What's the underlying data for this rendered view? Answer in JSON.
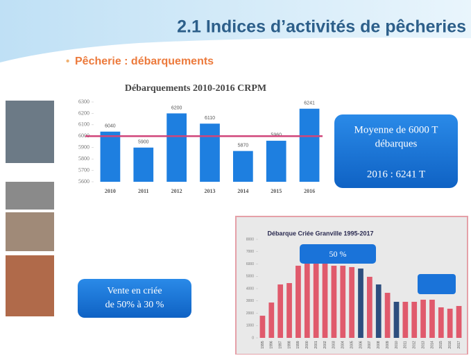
{
  "slide": {
    "title": "2.1 Indices d’activités de pêcheries",
    "bullet": "Pêcherie : débarquements",
    "box_average": {
      "line1": "Moyenne de 6000 T",
      "line2": "débarques",
      "line3": "2016 : 6241 T"
    },
    "box_sale": {
      "line1": "Vente en criée",
      "line2": "de 50% à 30 %"
    },
    "box_share": "50 %"
  },
  "chart_data": [
    {
      "type": "bar",
      "title": "Débarquements 2010-2016 CRPM",
      "categories": [
        "2010",
        "2011",
        "2012",
        "2013",
        "2014",
        "2015",
        "2016"
      ],
      "values": [
        6040,
        5900,
        6200,
        6110,
        5870,
        5960,
        6241
      ],
      "color": "#1e7fe0",
      "average": 6000,
      "average_color": "#d0457a",
      "ylim": [
        5600,
        6300
      ],
      "yticks": [
        5600,
        5700,
        5800,
        5900,
        6000,
        6100,
        6200,
        6300
      ]
    },
    {
      "type": "bar",
      "title": "Débarque Criée Granville 1995-2017",
      "categories": [
        "1995",
        "1996",
        "1997",
        "1998",
        "1999",
        "2000",
        "2001",
        "2002",
        "2003",
        "2004",
        "2005",
        "2006",
        "2007",
        "2008",
        "2009",
        "2010",
        "2011",
        "2012",
        "2013",
        "2014",
        "2015",
        "2016",
        "2017"
      ],
      "values": [
        1800,
        2870,
        4340,
        4450,
        5860,
        6140,
        6140,
        6030,
        5860,
        5860,
        5750,
        5630,
        4960,
        4340,
        3660,
        2930,
        2930,
        2930,
        3100,
        3100,
        2480,
        2370,
        2590
      ],
      "colors": [
        "#e05a6c",
        "#e05a6c",
        "#e05a6c",
        "#e05a6c",
        "#e05a6c",
        "#e05a6c",
        "#e05a6c",
        "#e05a6c",
        "#e05a6c",
        "#e05a6c",
        "#e05a6c",
        "#2d4e7e",
        "#e05a6c",
        "#2d4e7e",
        "#e05a6c",
        "#2d4e7e",
        "#e05a6c",
        "#e05a6c",
        "#e05a6c",
        "#e05a6c",
        "#e05a6c",
        "#e05a6c",
        "#e05a6c"
      ],
      "ylim": [
        0,
        8000
      ],
      "yticks": [
        0,
        1000,
        2000,
        3000,
        4000,
        5000,
        6000,
        7000,
        8000
      ]
    }
  ]
}
